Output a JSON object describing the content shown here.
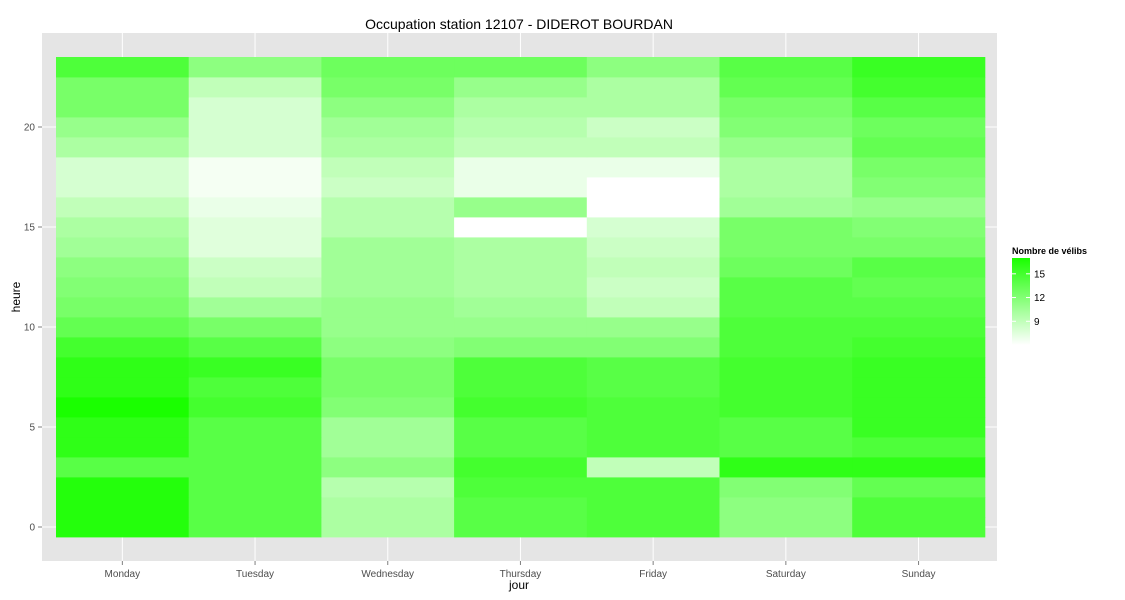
{
  "chart_data": {
    "type": "heatmap",
    "title": "Occupation station 12107 - DIDEROT BOURDAN",
    "xlabel": "jour",
    "ylabel": "heure",
    "categories": [
      "Monday",
      "Tuesday",
      "Wednesday",
      "Thursday",
      "Friday",
      "Saturday",
      "Sunday"
    ],
    "y": [
      0,
      1,
      2,
      3,
      4,
      5,
      6,
      7,
      8,
      9,
      10,
      11,
      12,
      13,
      14,
      15,
      16,
      17,
      18,
      19,
      20,
      21,
      22,
      23
    ],
    "y_ticks": [
      0,
      5,
      10,
      15,
      20
    ],
    "ylim": [
      -0.5,
      23.5
    ],
    "grid": true,
    "legend": {
      "title": "Nombre de vélibs",
      "position": "right",
      "ticks": [
        9,
        12,
        15
      ],
      "range": [
        6,
        17
      ],
      "color_low": "#ffffff",
      "color_high": "#1aff00"
    },
    "values": [
      [
        16.5,
        14.0,
        10.0,
        14.0,
        14.5,
        11.5,
        14.5
      ],
      [
        16.5,
        14.0,
        10.0,
        14.0,
        14.5,
        11.5,
        14.5
      ],
      [
        16.5,
        14.0,
        9.5,
        14.5,
        14.5,
        12.0,
        13.5
      ],
      [
        14.0,
        14.0,
        11.5,
        15.0,
        9.0,
        16.0,
        16.0
      ],
      [
        16.0,
        14.0,
        10.5,
        14.0,
        14.5,
        14.0,
        14.5
      ],
      [
        16.0,
        14.0,
        10.5,
        14.0,
        14.5,
        14.0,
        15.5
      ],
      [
        17.0,
        15.0,
        12.0,
        15.0,
        14.5,
        15.0,
        15.5
      ],
      [
        16.0,
        14.5,
        12.5,
        14.5,
        14.0,
        15.0,
        15.5
      ],
      [
        16.0,
        15.5,
        12.5,
        14.5,
        14.0,
        15.0,
        15.5
      ],
      [
        15.0,
        14.0,
        11.5,
        12.0,
        12.0,
        14.5,
        15.0
      ],
      [
        13.5,
        12.5,
        11.0,
        11.0,
        11.0,
        14.5,
        14.5
      ],
      [
        12.5,
        10.5,
        11.0,
        10.5,
        9.0,
        14.0,
        14.0
      ],
      [
        12.0,
        9.0,
        10.5,
        10.0,
        8.5,
        14.0,
        13.5
      ],
      [
        11.5,
        8.5,
        10.5,
        10.0,
        9.0,
        13.0,
        14.0
      ],
      [
        10.5,
        7.5,
        10.5,
        10.0,
        8.5,
        12.5,
        12.5
      ],
      [
        10.0,
        7.5,
        9.5,
        6.0,
        8.0,
        12.5,
        12.0
      ],
      [
        9.0,
        7.0,
        9.5,
        11.0,
        6.0,
        10.5,
        11.0
      ],
      [
        8.0,
        6.5,
        8.5,
        7.0,
        6.0,
        10.0,
        12.0
      ],
      [
        8.0,
        6.5,
        9.0,
        7.0,
        7.0,
        10.0,
        12.5
      ],
      [
        10.0,
        8.0,
        10.0,
        9.0,
        9.0,
        11.0,
        13.5
      ],
      [
        11.0,
        8.0,
        10.5,
        9.5,
        8.5,
        12.0,
        13.0
      ],
      [
        12.5,
        8.0,
        11.5,
        10.0,
        10.0,
        12.5,
        14.0
      ],
      [
        12.5,
        9.0,
        12.5,
        11.0,
        10.0,
        13.5,
        15.0
      ],
      [
        14.5,
        11.5,
        13.0,
        13.0,
        11.5,
        14.0,
        15.5
      ]
    ]
  }
}
